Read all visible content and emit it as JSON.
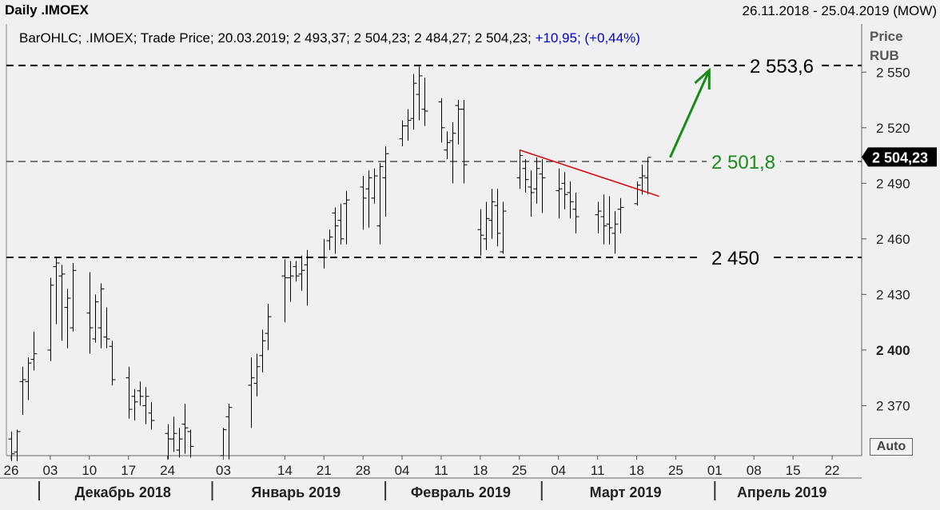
{
  "header": {
    "title": "Daily .IMOEX",
    "date_range": "26.11.2018 - 25.04.2019 (MOW)"
  },
  "legend": {
    "text": "BarOHLC; .IMOEX; Trade Price; 20.03.2019; 2 493,37; 2 504,23; 2 484,27; 2 504,23;",
    "change": "+10,95; (+0,44%)"
  },
  "price_axis_header": {
    "line1": "Price",
    "line2": "RUB"
  },
  "auto_button": "Auto",
  "colors": {
    "background": "#f0f0f0",
    "bars": "#000000",
    "trendline": "#dd0000",
    "arrow": "#1a8a1a",
    "level_2501": "#1a8a1a",
    "current_badge_bg": "#000000",
    "current_badge_text": "#ffffff",
    "change_text": "#0000d0"
  },
  "chart_data": {
    "type": "bar",
    "subtype": "ohlc",
    "title": "Daily .IMOEX",
    "ylabel": "Price RUB",
    "ylim": [
      2343,
      2576
    ],
    "yticks": [
      {
        "value": 2550,
        "label": "2 550"
      },
      {
        "value": 2520,
        "label": "2 520"
      },
      {
        "value": 2490,
        "label": "2 490"
      },
      {
        "value": 2460,
        "label": "2 460"
      },
      {
        "value": 2430,
        "label": "2 430"
      },
      {
        "value": 2400,
        "label": "2 400",
        "bold": true
      },
      {
        "value": 2370,
        "label": "2 370"
      }
    ],
    "xlim": [
      "2018-11-26",
      "2019-04-25"
    ],
    "xticks": [
      {
        "date": "2018-11-26",
        "label": "26"
      },
      {
        "date": "2018-12-03",
        "label": "03"
      },
      {
        "date": "2018-12-10",
        "label": "10"
      },
      {
        "date": "2018-12-17",
        "label": "17"
      },
      {
        "date": "2018-12-24",
        "label": "24"
      },
      {
        "date": "2019-01-03",
        "label": "03"
      },
      {
        "date": "2019-01-14",
        "label": "14"
      },
      {
        "date": "2019-01-21",
        "label": "21"
      },
      {
        "date": "2019-01-28",
        "label": "28"
      },
      {
        "date": "2019-02-04",
        "label": "04"
      },
      {
        "date": "2019-02-11",
        "label": "11"
      },
      {
        "date": "2019-02-18",
        "label": "18"
      },
      {
        "date": "2019-02-25",
        "label": "25"
      },
      {
        "date": "2019-03-04",
        "label": "04"
      },
      {
        "date": "2019-03-11",
        "label": "11"
      },
      {
        "date": "2019-03-18",
        "label": "18"
      },
      {
        "date": "2019-03-25",
        "label": "25"
      },
      {
        "date": "2019-04-01",
        "label": "01"
      },
      {
        "date": "2019-04-08",
        "label": "08"
      },
      {
        "date": "2019-04-15",
        "label": "15"
      },
      {
        "date": "2019-04-22",
        "label": "22"
      }
    ],
    "month_labels": [
      {
        "label": "Декабрь 2018",
        "start": "2018-12-01",
        "end": "2018-12-31"
      },
      {
        "label": "Январь 2019",
        "start": "2019-01-01",
        "end": "2019-01-31"
      },
      {
        "label": "Февраль 2019",
        "start": "2019-02-01",
        "end": "2019-02-28"
      },
      {
        "label": "Март 2019",
        "start": "2019-03-01",
        "end": "2019-03-31"
      },
      {
        "label": "Апрель 2019",
        "start": "2019-04-01",
        "end": "2019-04-25"
      }
    ],
    "series": [
      {
        "columns": [
          "date",
          "open",
          "high",
          "low",
          "close"
        ],
        "values": [
          [
            "2018-11-26",
            2352,
            2356,
            2340,
            2344
          ],
          [
            "2018-11-27",
            2345,
            2357,
            2340,
            2356
          ],
          [
            "2018-11-28",
            2383,
            2391,
            2365,
            2384
          ],
          [
            "2018-11-29",
            2383,
            2396,
            2373,
            2393
          ],
          [
            "2018-11-30",
            2395,
            2410,
            2389,
            2398
          ],
          [
            "2018-12-03",
            2400,
            2439,
            2394,
            2435
          ],
          [
            "2018-12-04",
            2445,
            2450,
            2414,
            2447
          ],
          [
            "2018-12-05",
            2440,
            2446,
            2405,
            2441
          ],
          [
            "2018-12-06",
            2423,
            2433,
            2401,
            2428
          ],
          [
            "2018-12-07",
            2412,
            2447,
            2410,
            2443
          ],
          [
            "2018-12-10",
            2420,
            2442,
            2398,
            2412
          ],
          [
            "2018-12-11",
            2406,
            2430,
            2404,
            2426
          ],
          [
            "2018-12-12",
            2412,
            2436,
            2401,
            2433
          ],
          [
            "2018-12-13",
            2407,
            2423,
            2401,
            2406
          ],
          [
            "2018-12-14",
            2402,
            2405,
            2381,
            2384
          ],
          [
            "2018-12-17",
            2385,
            2391,
            2363,
            2368
          ],
          [
            "2018-12-18",
            2375,
            2379,
            2362,
            2372
          ],
          [
            "2018-12-19",
            2378,
            2383,
            2370,
            2375
          ],
          [
            "2018-12-20",
            2370,
            2380,
            2360,
            2375
          ],
          [
            "2018-12-21",
            2366,
            2372,
            2357,
            2362
          ],
          [
            "2018-12-24",
            2355,
            2360,
            2341,
            2352
          ],
          [
            "2018-12-25",
            2352,
            2364,
            2345,
            2355
          ],
          [
            "2018-12-26",
            2346,
            2358,
            2342,
            2352
          ],
          [
            "2018-12-27",
            2360,
            2371,
            2344,
            2358
          ],
          [
            "2018-12-28",
            2356,
            2357,
            2342,
            2348
          ],
          [
            "2019-01-03",
            2343,
            2358,
            2343,
            2357
          ],
          [
            "2019-01-04",
            2364,
            2371,
            2341,
            2369
          ],
          [
            "2019-01-08",
            2381,
            2396,
            2358,
            2385
          ],
          [
            "2019-01-09",
            2382,
            2398,
            2375,
            2391
          ],
          [
            "2019-01-10",
            2397,
            2411,
            2388,
            2405
          ],
          [
            "2019-01-11",
            2409,
            2425,
            2400,
            2418
          ],
          [
            "2019-01-14",
            2440,
            2449,
            2415,
            2439
          ],
          [
            "2019-01-15",
            2439,
            2448,
            2426,
            2440
          ],
          [
            "2019-01-16",
            2445,
            2448,
            2437,
            2440
          ],
          [
            "2019-01-17",
            2441,
            2451,
            2432,
            2443
          ],
          [
            "2019-01-18",
            2446,
            2454,
            2424,
            2450
          ],
          [
            "2019-01-21",
            2450,
            2460,
            2444,
            2450
          ],
          [
            "2019-01-22",
            2459,
            2465,
            2454,
            2461
          ],
          [
            "2019-01-23",
            2474,
            2477,
            2452,
            2467
          ],
          [
            "2019-01-24",
            2470,
            2479,
            2457,
            2460
          ],
          [
            "2019-01-25",
            2479,
            2486,
            2457,
            2481
          ],
          [
            "2019-01-28",
            2488,
            2494,
            2465,
            2482
          ],
          [
            "2019-01-29",
            2487,
            2497,
            2466,
            2493
          ],
          [
            "2019-01-30",
            2482,
            2498,
            2479,
            2494
          ],
          [
            "2019-01-31",
            2467,
            2501,
            2457,
            2499
          ],
          [
            "2019-02-01",
            2493,
            2510,
            2472,
            2506
          ],
          [
            "2019-02-04",
            2514,
            2524,
            2510,
            2521
          ],
          [
            "2019-02-05",
            2521,
            2530,
            2513,
            2524
          ],
          [
            "2019-02-06",
            2525,
            2549,
            2519,
            2544
          ],
          [
            "2019-02-07",
            2538,
            2553,
            2524,
            2548
          ],
          [
            "2019-02-08",
            2530,
            2547,
            2521,
            2529
          ],
          [
            "2019-02-11",
            2534,
            2536,
            2512,
            2520
          ],
          [
            "2019-02-12",
            2508,
            2518,
            2503,
            2512
          ],
          [
            "2019-02-13",
            2513,
            2523,
            2490,
            2517
          ],
          [
            "2019-02-14",
            2532,
            2535,
            2511,
            2530
          ],
          [
            "2019-02-15",
            2530,
            2535,
            2490,
            2500
          ],
          [
            "2019-02-18",
            2465,
            2476,
            2451,
            2462
          ],
          [
            "2019-02-19",
            2460,
            2480,
            2454,
            2471
          ],
          [
            "2019-02-20",
            2470,
            2487,
            2460,
            2480
          ],
          [
            "2019-02-21",
            2478,
            2487,
            2456,
            2463
          ],
          [
            "2019-02-22",
            2453,
            2480,
            2452,
            2475
          ],
          [
            "2019-02-25",
            2493,
            2508,
            2487,
            2505
          ],
          [
            "2019-02-26",
            2498,
            2503,
            2485,
            2492
          ],
          [
            "2019-02-27",
            2488,
            2497,
            2472,
            2485
          ],
          [
            "2019-02-28",
            2487,
            2504,
            2479,
            2498
          ],
          [
            "2019-03-01",
            2495,
            2503,
            2474,
            2493
          ],
          [
            "2019-03-04",
            2486,
            2498,
            2471,
            2487
          ],
          [
            "2019-03-05",
            2490,
            2496,
            2476,
            2484
          ],
          [
            "2019-03-06",
            2485,
            2491,
            2471,
            2480
          ],
          [
            "2019-03-07",
            2476,
            2485,
            2463,
            2472
          ],
          [
            "2019-03-11",
            2473,
            2480,
            2463,
            2475
          ],
          [
            "2019-03-12",
            2472,
            2484,
            2457,
            2467
          ],
          [
            "2019-03-13",
            2468,
            2483,
            2457,
            2466
          ],
          [
            "2019-03-14",
            2463,
            2475,
            2452,
            2468
          ],
          [
            "2019-03-15",
            2476,
            2482,
            2463,
            2477
          ],
          [
            "2019-03-18",
            2479,
            2491,
            2478,
            2489
          ],
          [
            "2019-03-19",
            2493,
            2500,
            2484,
            2494
          ],
          [
            "2019-03-20",
            2493,
            2504,
            2484,
            2504
          ]
        ]
      }
    ],
    "horizontal_levels": [
      {
        "value": 2553.6,
        "label": "2 553,6",
        "color": "#000000"
      },
      {
        "value": 2501.8,
        "label": "2 501,8",
        "color": "#1a8a1a"
      },
      {
        "value": 2450,
        "label": "2 450",
        "color": "#000000"
      }
    ],
    "current_price": {
      "value": 2504.23,
      "label": "2 504,23"
    },
    "trendline": {
      "points": [
        {
          "date": "2019-02-25",
          "value": 2508
        },
        {
          "date": "2019-03-22",
          "value": 2483
        }
      ]
    },
    "arrow": {
      "from": {
        "date": "2019-03-24",
        "value": 2504
      },
      "to": {
        "date": "2019-03-31",
        "value": 2551
      }
    },
    "grid": false
  }
}
